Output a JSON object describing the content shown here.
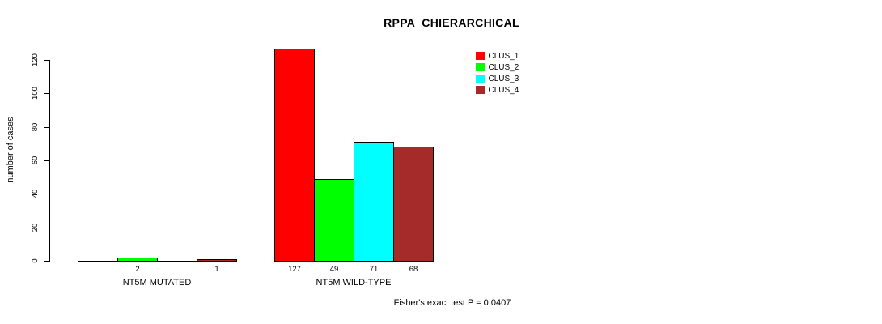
{
  "chart_data": {
    "type": "bar",
    "title": "RPPA_CHIERARCHICAL",
    "ylabel": "number of cases",
    "xlabel": "",
    "yticks": [
      0,
      20,
      40,
      60,
      80,
      100,
      120
    ],
    "ylim": [
      0,
      120
    ],
    "grid": false,
    "legend_position": "top-right",
    "categories": [
      "NT5M MUTATED",
      "NT5M WILD-TYPE"
    ],
    "series": [
      {
        "name": "CLUS_1",
        "color": "#ff0000",
        "values": [
          0,
          127
        ]
      },
      {
        "name": "CLUS_2",
        "color": "#00ff00",
        "values": [
          2,
          49
        ]
      },
      {
        "name": "CLUS_3",
        "color": "#00ffff",
        "values": [
          0,
          71
        ]
      },
      {
        "name": "CLUS_4",
        "color": "#a52a2a",
        "values": [
          1,
          68
        ]
      }
    ],
    "annotation": "Fisher's exact test P = 0.0407"
  },
  "colors": {
    "axis": "#000000",
    "text": "#000000",
    "background": "#ffffff"
  }
}
